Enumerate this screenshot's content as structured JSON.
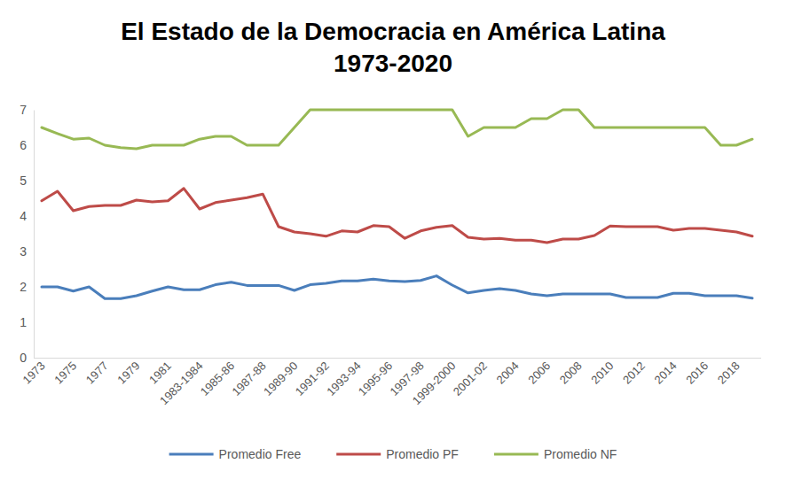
{
  "chart_data": {
    "type": "line",
    "title": "El Estado de la Democracia en América Latina\n1973-2020",
    "categories": [
      "1973",
      null,
      "1975",
      null,
      "1977",
      null,
      "1979",
      null,
      "1981",
      null,
      "1983-1984",
      null,
      "1985-86",
      null,
      "1987-88",
      null,
      "1989-90",
      null,
      "1991-92",
      null,
      "1993-94",
      null,
      "1995-96",
      null,
      "1997-98",
      null,
      "1999-2000",
      null,
      "2001-02",
      null,
      "2004",
      null,
      "2006",
      null,
      "2008",
      null,
      "2010",
      null,
      "2012",
      null,
      "2014",
      null,
      "2016",
      null,
      "2018",
      null
    ],
    "series": [
      {
        "name": "Promedio Free",
        "color": "#4a7ebb",
        "values": [
          2.0,
          2.0,
          1.88,
          2.0,
          1.67,
          1.67,
          1.75,
          1.88,
          2.0,
          1.92,
          1.92,
          2.06,
          2.13,
          2.04,
          2.04,
          2.04,
          1.9,
          2.06,
          2.1,
          2.17,
          2.17,
          2.22,
          2.17,
          2.15,
          2.18,
          2.31,
          2.05,
          1.83,
          1.9,
          1.95,
          1.9,
          1.8,
          1.75,
          1.8,
          1.8,
          1.8,
          1.8,
          1.7,
          1.7,
          1.7,
          1.82,
          1.82,
          1.75,
          1.75,
          1.75,
          1.68
        ]
      },
      {
        "name": "Promedio PF",
        "color": "#be4b48",
        "values": [
          4.43,
          4.7,
          4.15,
          4.27,
          4.3,
          4.3,
          4.45,
          4.4,
          4.43,
          4.78,
          4.2,
          4.38,
          4.45,
          4.52,
          4.62,
          3.7,
          3.55,
          3.5,
          3.43,
          3.58,
          3.55,
          3.73,
          3.7,
          3.37,
          3.58,
          3.68,
          3.73,
          3.4,
          3.35,
          3.37,
          3.32,
          3.32,
          3.25,
          3.35,
          3.35,
          3.45,
          3.72,
          3.7,
          3.7,
          3.7,
          3.6,
          3.65,
          3.65,
          3.6,
          3.55,
          3.43
        ]
      },
      {
        "name": "Promedio NF",
        "color": "#98b954",
        "values": [
          6.5,
          6.33,
          6.17,
          6.2,
          6.0,
          5.93,
          5.9,
          6.0,
          6.0,
          6.0,
          6.17,
          6.25,
          6.25,
          6.0,
          6.0,
          6.0,
          6.5,
          7,
          7,
          7,
          7,
          7,
          7,
          7,
          7,
          7,
          7,
          6.25,
          6.5,
          6.5,
          6.5,
          6.75,
          6.75,
          7,
          7,
          6.5,
          6.5,
          6.5,
          6.5,
          6.5,
          6.5,
          6.5,
          6.5,
          6.0,
          6.0,
          6.17
        ]
      }
    ],
    "ylim": [
      0,
      7
    ],
    "yticks": [
      0,
      1,
      2,
      3,
      4,
      5,
      6,
      7
    ],
    "grid": false,
    "legend": "bottom"
  }
}
